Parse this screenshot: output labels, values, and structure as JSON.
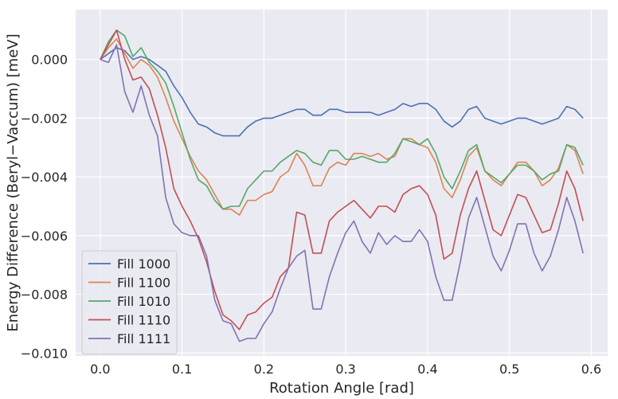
{
  "chart_data": {
    "type": "line",
    "xlabel": "Rotation Angle [rad]",
    "ylabel": "Energy Difference (Beryl−Vaccum) [meV]",
    "xlim": [
      -0.03,
      0.62
    ],
    "ylim": [
      -0.0101,
      0.0017
    ],
    "x_ticks": [
      0.0,
      0.1,
      0.2,
      0.3,
      0.4,
      0.5,
      0.6
    ],
    "x_tick_labels": [
      "0.0",
      "0.1",
      "0.2",
      "0.3",
      "0.4",
      "0.5",
      "0.6"
    ],
    "y_ticks": [
      0.0,
      -0.002,
      -0.004,
      -0.006,
      -0.008,
      -0.01
    ],
    "y_tick_labels": [
      "0.000",
      "−0.002",
      "−0.004",
      "−0.006",
      "−0.008",
      "−0.010"
    ],
    "grid": true,
    "legend_position": "lower-left",
    "x": [
      0.0,
      0.01,
      0.02,
      0.03,
      0.04,
      0.05,
      0.06,
      0.07,
      0.08,
      0.09,
      0.1,
      0.11,
      0.12,
      0.13,
      0.14,
      0.15,
      0.16,
      0.17,
      0.18,
      0.19,
      0.2,
      0.21,
      0.22,
      0.23,
      0.24,
      0.25,
      0.26,
      0.27,
      0.28,
      0.29,
      0.3,
      0.31,
      0.32,
      0.33,
      0.34,
      0.35,
      0.36,
      0.37,
      0.38,
      0.39,
      0.4,
      0.41,
      0.42,
      0.43,
      0.44,
      0.45,
      0.46,
      0.47,
      0.48,
      0.49,
      0.5,
      0.51,
      0.52,
      0.53,
      0.54,
      0.55,
      0.56,
      0.57,
      0.58,
      0.59
    ],
    "series": [
      {
        "name": "Fill 1000",
        "color": "#4c72b0",
        "values": [
          0.0,
          0.0002,
          0.0004,
          0.0003,
          0.0,
          0.0001,
          0.0,
          -0.0002,
          -0.0004,
          -0.0009,
          -0.0013,
          -0.0018,
          -0.0022,
          -0.0023,
          -0.0025,
          -0.0026,
          -0.0026,
          -0.0026,
          -0.0023,
          -0.0021,
          -0.002,
          -0.002,
          -0.0019,
          -0.0018,
          -0.0017,
          -0.0017,
          -0.0019,
          -0.0019,
          -0.0017,
          -0.0017,
          -0.0018,
          -0.0018,
          -0.0018,
          -0.0018,
          -0.0019,
          -0.0018,
          -0.0017,
          -0.0015,
          -0.0016,
          -0.0015,
          -0.0015,
          -0.0017,
          -0.0021,
          -0.0023,
          -0.0021,
          -0.0017,
          -0.0016,
          -0.002,
          -0.0021,
          -0.0022,
          -0.0021,
          -0.002,
          -0.002,
          -0.0021,
          -0.0022,
          -0.0021,
          -0.002,
          -0.0016,
          -0.0017,
          -0.002
        ]
      },
      {
        "name": "Fill 1100",
        "color": "#dd8452",
        "values": [
          0.0,
          0.0004,
          0.0007,
          0.0002,
          -0.0003,
          0.0,
          -0.0002,
          -0.0006,
          -0.0013,
          -0.0021,
          -0.0027,
          -0.0033,
          -0.0038,
          -0.0041,
          -0.0046,
          -0.0051,
          -0.0051,
          -0.0053,
          -0.0048,
          -0.0048,
          -0.0046,
          -0.0045,
          -0.004,
          -0.0038,
          -0.0032,
          -0.0036,
          -0.0043,
          -0.0043,
          -0.0037,
          -0.0035,
          -0.0036,
          -0.0032,
          -0.0032,
          -0.0033,
          -0.0032,
          -0.0034,
          -0.0033,
          -0.0027,
          -0.0027,
          -0.0029,
          -0.003,
          -0.0035,
          -0.0044,
          -0.0047,
          -0.0041,
          -0.0033,
          -0.003,
          -0.0038,
          -0.0041,
          -0.0043,
          -0.0039,
          -0.0035,
          -0.0035,
          -0.0038,
          -0.0043,
          -0.0041,
          -0.0037,
          -0.0029,
          -0.0031,
          -0.0039
        ]
      },
      {
        "name": "Fill 1010",
        "color": "#55a868",
        "values": [
          0.0,
          0.0006,
          0.001,
          0.0008,
          0.0001,
          0.0004,
          -0.0001,
          -0.0004,
          -0.0008,
          -0.0016,
          -0.0025,
          -0.0034,
          -0.0041,
          -0.0043,
          -0.0048,
          -0.0051,
          -0.005,
          -0.005,
          -0.0044,
          -0.0041,
          -0.0038,
          -0.0038,
          -0.0035,
          -0.0033,
          -0.0031,
          -0.0032,
          -0.0035,
          -0.0036,
          -0.0031,
          -0.0031,
          -0.0034,
          -0.0034,
          -0.0033,
          -0.0034,
          -0.0035,
          -0.0035,
          -0.0032,
          -0.0027,
          -0.0028,
          -0.0029,
          -0.0027,
          -0.0032,
          -0.004,
          -0.0044,
          -0.0038,
          -0.0031,
          -0.0029,
          -0.0038,
          -0.004,
          -0.0042,
          -0.0039,
          -0.0036,
          -0.0036,
          -0.0038,
          -0.0041,
          -0.0039,
          -0.0038,
          -0.0029,
          -0.003,
          -0.0036
        ]
      },
      {
        "name": "Fill 1110",
        "color": "#c44e52",
        "values": [
          0.0,
          0.0005,
          0.001,
          0.0,
          -0.0007,
          -0.0006,
          -0.001,
          -0.0019,
          -0.003,
          -0.0044,
          -0.005,
          -0.0055,
          -0.0061,
          -0.0069,
          -0.0079,
          -0.0087,
          -0.0089,
          -0.0092,
          -0.0087,
          -0.0086,
          -0.0083,
          -0.0081,
          -0.0074,
          -0.0071,
          -0.0052,
          -0.0053,
          -0.0066,
          -0.0066,
          -0.0055,
          -0.0052,
          -0.005,
          -0.0048,
          -0.0051,
          -0.0054,
          -0.005,
          -0.005,
          -0.0052,
          -0.0046,
          -0.0044,
          -0.0043,
          -0.0046,
          -0.0053,
          -0.0068,
          -0.0066,
          -0.0053,
          -0.0044,
          -0.0038,
          -0.0048,
          -0.0058,
          -0.006,
          -0.0053,
          -0.0046,
          -0.0047,
          -0.0053,
          -0.0059,
          -0.0058,
          -0.0049,
          -0.0038,
          -0.0044,
          -0.0055
        ]
      },
      {
        "name": "Fill 1111",
        "color": "#8172b3",
        "values": [
          0.0,
          -0.0001,
          0.0005,
          -0.0011,
          -0.0018,
          -0.0009,
          -0.0019,
          -0.0026,
          -0.0047,
          -0.0056,
          -0.0059,
          -0.006,
          -0.006,
          -0.0067,
          -0.0082,
          -0.0089,
          -0.009,
          -0.0096,
          -0.0095,
          -0.0095,
          -0.009,
          -0.0086,
          -0.0078,
          -0.0071,
          -0.0067,
          -0.0065,
          -0.0085,
          -0.0085,
          -0.0074,
          -0.0066,
          -0.0059,
          -0.0055,
          -0.0062,
          -0.0066,
          -0.0059,
          -0.0063,
          -0.006,
          -0.0062,
          -0.0062,
          -0.0058,
          -0.0062,
          -0.0074,
          -0.0082,
          -0.0082,
          -0.0069,
          -0.0054,
          -0.0047,
          -0.0057,
          -0.0067,
          -0.0072,
          -0.0065,
          -0.0056,
          -0.0056,
          -0.0066,
          -0.0072,
          -0.0067,
          -0.0058,
          -0.0047,
          -0.0055,
          -0.0066
        ]
      }
    ]
  }
}
